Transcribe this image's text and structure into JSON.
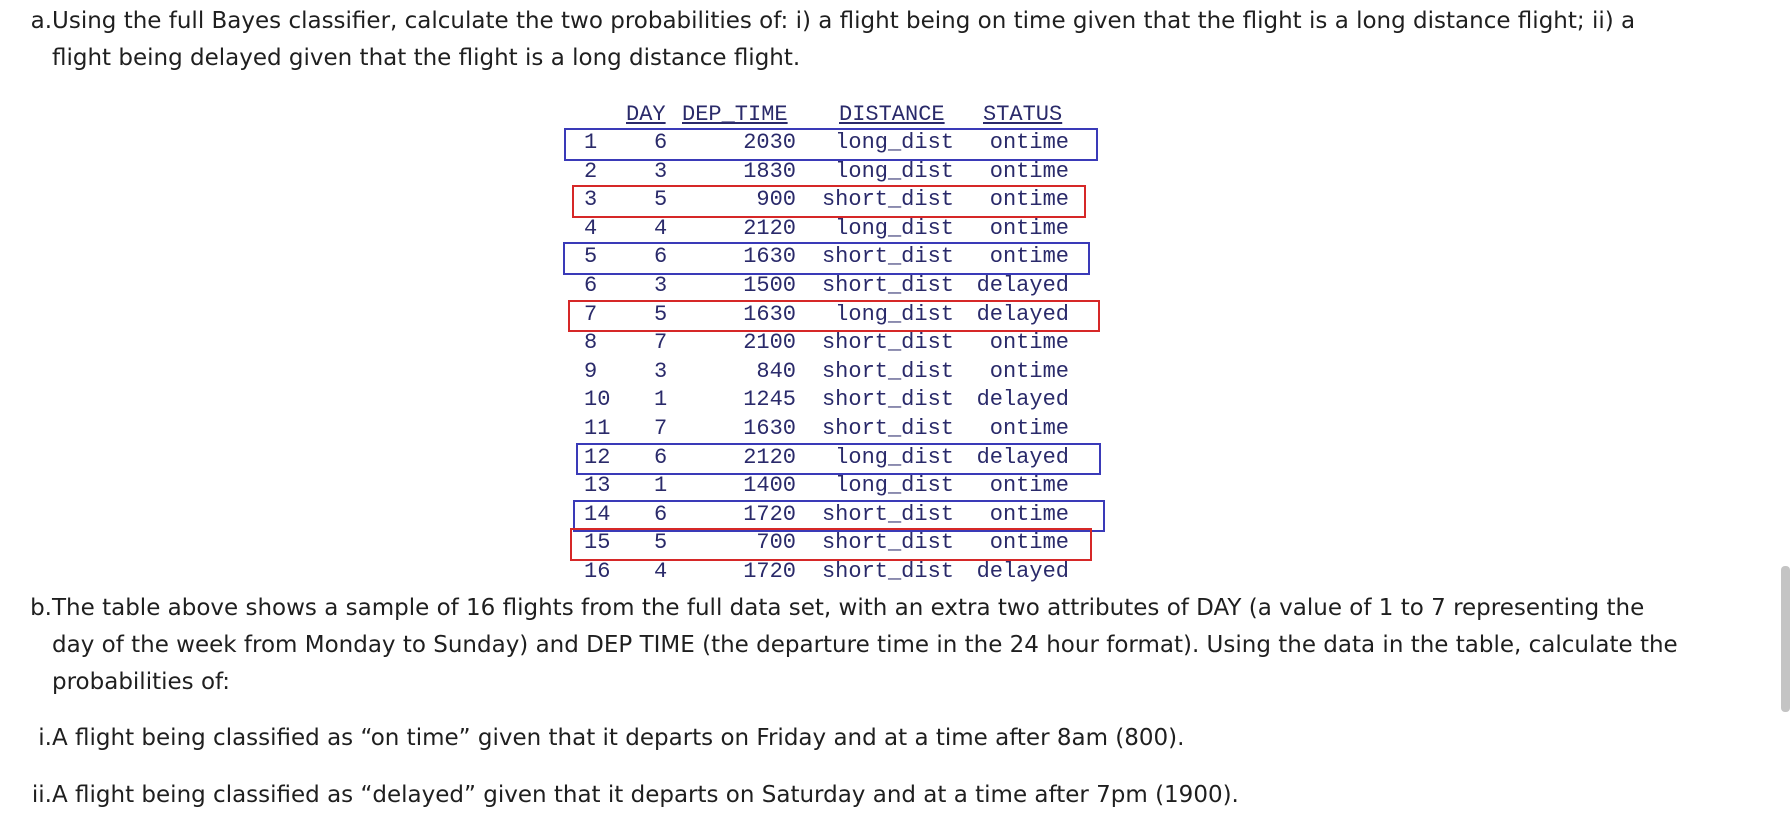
{
  "question_a": {
    "marker": "a.",
    "text": "Using the full Bayes classifier, calculate the two probabilities of: i) a flight being on time given that the flight is a long distance flight; ii) a flight being delayed given that the flight is a long distance flight."
  },
  "table": {
    "headers": [
      "DAY",
      "DEP_TIME",
      "DISTANCE",
      "STATUS"
    ],
    "rows": [
      {
        "n": "1",
        "day": "6",
        "dep": "2030",
        "dist": "long_dist",
        "status": "ontime",
        "box": "blue"
      },
      {
        "n": "2",
        "day": "3",
        "dep": "1830",
        "dist": "long_dist",
        "status": "ontime",
        "box": ""
      },
      {
        "n": "3",
        "day": "5",
        "dep": "900",
        "dist": "short_dist",
        "status": "ontime",
        "box": "red"
      },
      {
        "n": "4",
        "day": "4",
        "dep": "2120",
        "dist": "long_dist",
        "status": "ontime",
        "box": ""
      },
      {
        "n": "5",
        "day": "6",
        "dep": "1630",
        "dist": "short_dist",
        "status": "ontime",
        "box": "blue"
      },
      {
        "n": "6",
        "day": "3",
        "dep": "1500",
        "dist": "short_dist",
        "status": "delayed",
        "box": ""
      },
      {
        "n": "7",
        "day": "5",
        "dep": "1630",
        "dist": "long_dist",
        "status": "delayed",
        "box": "red"
      },
      {
        "n": "8",
        "day": "7",
        "dep": "2100",
        "dist": "short_dist",
        "status": "ontime",
        "box": ""
      },
      {
        "n": "9",
        "day": "3",
        "dep": "840",
        "dist": "short_dist",
        "status": "ontime",
        "box": ""
      },
      {
        "n": "10",
        "day": "1",
        "dep": "1245",
        "dist": "short_dist",
        "status": "delayed",
        "box": ""
      },
      {
        "n": "11",
        "day": "7",
        "dep": "1630",
        "dist": "short_dist",
        "status": "ontime",
        "box": ""
      },
      {
        "n": "12",
        "day": "6",
        "dep": "2120",
        "dist": "long_dist",
        "status": "delayed",
        "box": "blue"
      },
      {
        "n": "13",
        "day": "1",
        "dep": "1400",
        "dist": "long_dist",
        "status": "ontime",
        "box": ""
      },
      {
        "n": "14",
        "day": "6",
        "dep": "1720",
        "dist": "short_dist",
        "status": "ontime",
        "box": "blue"
      },
      {
        "n": "15",
        "day": "5",
        "dep": "700",
        "dist": "short_dist",
        "status": "ontime",
        "box": "red"
      },
      {
        "n": "16",
        "day": "4",
        "dep": "1720",
        "dist": "short_dist",
        "status": "delayed",
        "box": ""
      }
    ],
    "colors": {
      "blue_box": "#3a3ab8",
      "red_box": "#d62828",
      "text": "#2a2a6a"
    }
  },
  "question_b": {
    "marker": "b.",
    "text": "The table above shows a sample of 16 flights from the full data set, with an extra two attributes of DAY (a value of 1 to 7 representing the day of the week from Monday to Sunday) and DEP TIME (the departure time in the 24 hour format). Using the data in the table, calculate the probabilities of:"
  },
  "item_i": {
    "marker": "i.",
    "text": "A flight being classified as “on time” given that it departs on Friday and at a time after 8am (800)."
  },
  "item_ii": {
    "marker": "ii.",
    "text": "A flight being classified as “delayed” given that it departs on Saturday and at a time after 7pm (1900)."
  }
}
